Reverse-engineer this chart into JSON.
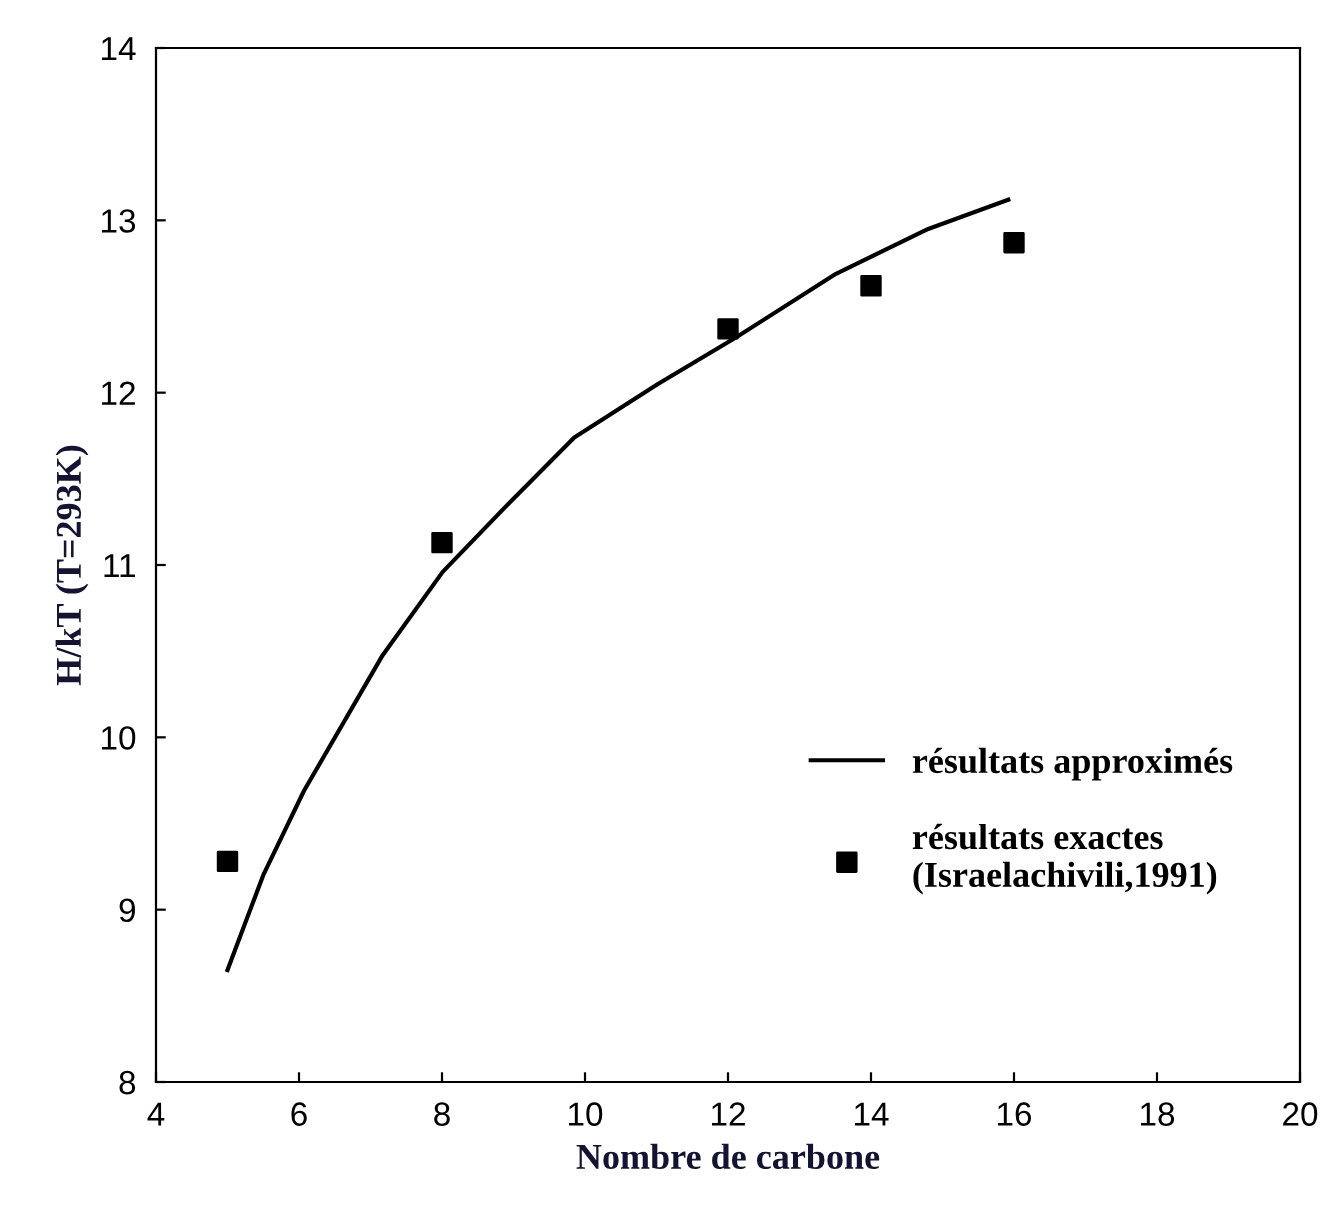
{
  "chart_data": {
    "type": "scatter",
    "xlabel": "Nombre de carbone",
    "ylabel": "H/kT (T=293K)",
    "xlim": [
      4,
      20
    ],
    "xticks": [
      4,
      6,
      8,
      10,
      12,
      14,
      16,
      18,
      20
    ],
    "ylim": [
      8,
      14
    ],
    "yticks": [
      8,
      9,
      10,
      11,
      12,
      13,
      14
    ],
    "grid": false,
    "legend": "bottom right",
    "series": [
      {
        "name": "résultats approximés",
        "type": "line",
        "color": "#000000",
        "marker": "none",
        "line_style": "solid",
        "x": [
          5,
          5.5,
          6.07,
          7.16,
          8.01,
          8.87,
          9.85,
          11.02,
          12.11,
          13.51,
          14.8,
          15.92
        ],
        "values": [
          8.65,
          9.2,
          9.69,
          10.47,
          10.96,
          11.33,
          11.74,
          12.05,
          12.32,
          12.69,
          12.95,
          13.12
        ]
      },
      {
        "name": "résultats exactes\n(Israelachivili,1991)",
        "color": "#000000",
        "marker": "square",
        "x": [
          5,
          8,
          12,
          14,
          16
        ],
        "values": [
          9.28,
          11.13,
          12.37,
          12.62,
          12.87
        ]
      }
    ]
  }
}
